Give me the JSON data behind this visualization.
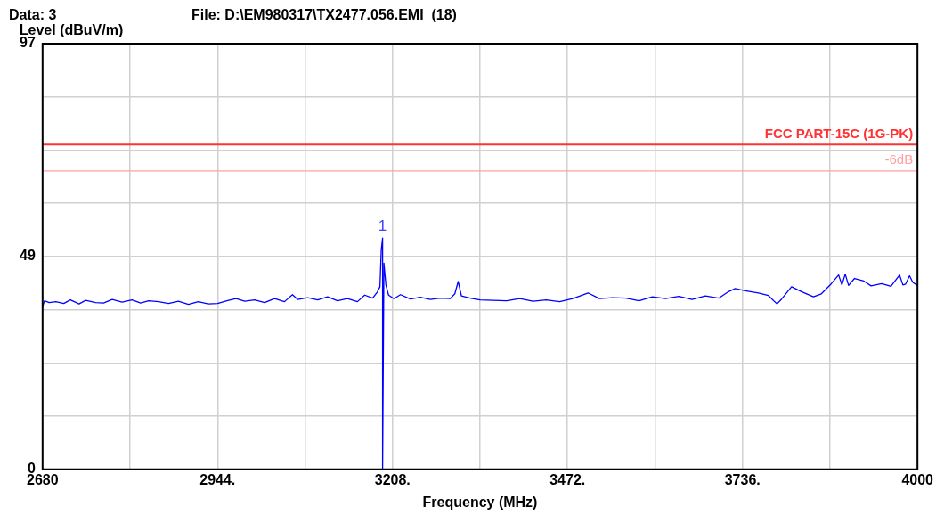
{
  "chart_data": {
    "type": "line",
    "xlabel": "Frequency (MHz)",
    "ylabel": "Level (dBuV/m)",
    "annotations": [
      "Data: 3",
      "File: D:\\EM980317\\TX2477.056.EMI  (18)",
      {
        "text": "1",
        "x": 3193,
        "y": 52.7
      }
    ],
    "xlim": [
      2680,
      4000
    ],
    "ylim": [
      0,
      97
    ],
    "xticks": [
      2680,
      {
        "value": 2812,
        "label": null
      },
      {
        "value": 2944,
        "label": "2944."
      },
      {
        "value": 3076,
        "label": null
      },
      {
        "value": 3208,
        "label": "3208."
      },
      {
        "value": 3340,
        "label": null
      },
      {
        "value": 3472,
        "label": "3472."
      },
      {
        "value": 3604,
        "label": null
      },
      {
        "value": 3736,
        "label": "3736."
      },
      {
        "value": 3868,
        "label": null
      },
      4000
    ],
    "yticks": [
      0,
      {
        "value": 12.125,
        "label": null
      },
      {
        "value": 24.25,
        "label": null
      },
      {
        "value": 36.375,
        "label": null
      },
      {
        "value": 48.5,
        "label": "49"
      },
      {
        "value": 60.625,
        "label": null
      },
      {
        "value": 72.75,
        "label": null
      },
      {
        "value": 84.875,
        "label": null
      },
      97
    ],
    "grid": true,
    "legend": false,
    "ref_lines": [
      {
        "axis": "y",
        "value": 74,
        "label": "FCC PART-15C (1G-PK)",
        "color": "#ff3333"
      },
      {
        "axis": "y",
        "value": 68,
        "label": "-6dB",
        "color": "#ff9f9f"
      }
    ],
    "series": [
      {
        "color": "#0000ff",
        "x": [
          2680,
          2683,
          2690,
          2700,
          2712,
          2722,
          2735,
          2745,
          2760,
          2772,
          2785,
          2800,
          2815,
          2828,
          2840,
          2855,
          2870,
          2885,
          2900,
          2915,
          2930,
          2944,
          2958,
          2972,
          2985,
          3000,
          3015,
          3030,
          3045,
          3057,
          3065,
          3080,
          3095,
          3110,
          3125,
          3140,
          3155,
          3166,
          3178,
          3185,
          3189,
          3191,
          3193,
          3193,
          3195,
          3198,
          3202,
          3210,
          3220,
          3235,
          3250,
          3265,
          3280,
          3295,
          3302,
          3307,
          3312,
          3325,
          3340,
          3360,
          3380,
          3400,
          3420,
          3440,
          3460,
          3480,
          3503,
          3520,
          3540,
          3560,
          3580,
          3600,
          3620,
          3640,
          3660,
          3680,
          3700,
          3715,
          3725,
          3740,
          3760,
          3775,
          3788,
          3795,
          3810,
          3825,
          3843,
          3855,
          3870,
          3881,
          3886,
          3891,
          3896,
          3905,
          3919,
          3930,
          3946,
          3960,
          3973,
          3978,
          3982,
          3988,
          3993,
          4000
        ],
        "values": [
          37.1,
          38.4,
          38.0,
          38.2,
          37.8,
          38.6,
          37.7,
          38.5,
          38.0,
          37.9,
          38.7,
          38.1,
          38.6,
          37.9,
          38.4,
          38.2,
          37.8,
          38.3,
          37.6,
          38.2,
          37.7,
          37.8,
          38.4,
          38.9,
          38.3,
          38.6,
          38.0,
          38.9,
          38.2,
          39.8,
          38.7,
          39.1,
          38.6,
          39.3,
          38.4,
          38.9,
          38.2,
          39.7,
          39.0,
          40.4,
          41.6,
          50.0,
          52.7,
          0,
          47.0,
          42.0,
          39.7,
          38.9,
          39.8,
          38.8,
          39.2,
          38.7,
          39.0,
          38.9,
          40.0,
          42.8,
          39.5,
          39.0,
          38.6,
          38.5,
          38.4,
          38.9,
          38.3,
          38.6,
          38.2,
          38.9,
          40.2,
          38.9,
          39.1,
          39.0,
          38.4,
          39.3,
          38.9,
          39.4,
          38.7,
          39.5,
          39.0,
          40.5,
          41.2,
          40.7,
          40.2,
          39.6,
          37.7,
          38.8,
          41.6,
          40.5,
          39.3,
          40.0,
          42.3,
          44.3,
          42.0,
          44.5,
          41.9,
          43.5,
          42.9,
          41.8,
          42.3,
          41.7,
          44.3,
          42.0,
          42.2,
          44.1,
          42.6,
          41.9
        ]
      }
    ]
  }
}
